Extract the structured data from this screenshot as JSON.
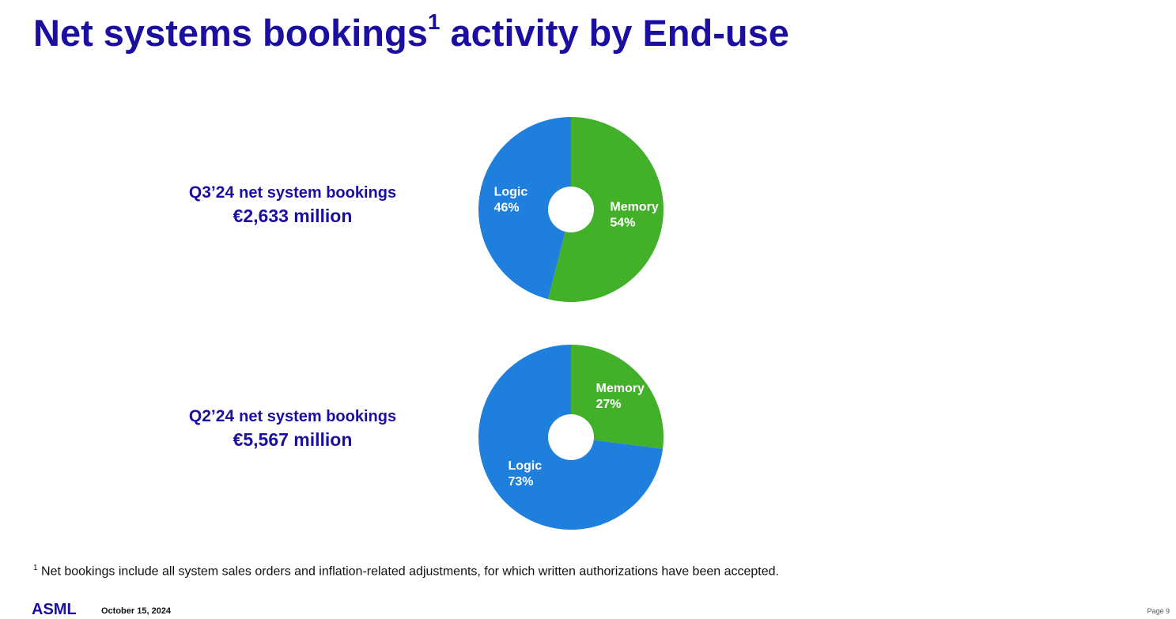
{
  "title": {
    "main": "Net systems bookings",
    "sup": "1",
    "tail": " activity by End-use"
  },
  "colors": {
    "title": "#1a0fa0",
    "logic": "#1e7fdc",
    "memory": "#43b02a"
  },
  "chart_data": [
    {
      "type": "pie",
      "quarter": "Q3’24",
      "label": "net system bookings",
      "amount": "€2,633 million",
      "slices": [
        {
          "name": "Memory",
          "value": 54,
          "display": "54%",
          "color": "#43b02a"
        },
        {
          "name": "Logic",
          "value": 46,
          "display": "46%",
          "color": "#1e7fdc"
        }
      ]
    },
    {
      "type": "pie",
      "quarter": "Q2’24",
      "label": "net system bookings",
      "amount": "€5,567 million",
      "slices": [
        {
          "name": "Memory",
          "value": 27,
          "display": "27%",
          "color": "#43b02a"
        },
        {
          "name": "Logic",
          "value": 73,
          "display": "73%",
          "color": "#1e7fdc"
        }
      ]
    }
  ],
  "footnote": {
    "sup": "1",
    "text": " Net bookings include all system sales orders and inflation-related adjustments, for which written authorizations have been accepted."
  },
  "footer": {
    "logo": "ASML",
    "date": "October 15, 2024",
    "page": "Page 9"
  }
}
